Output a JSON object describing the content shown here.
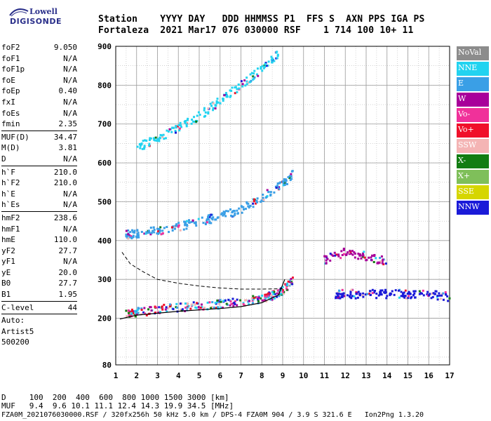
{
  "logo": {
    "top": "Lowell",
    "main": "DIGISONDE"
  },
  "header": {
    "line1": "Station    YYYY DAY   DDD HHMMSS P1  FFS S  AXN PPS IGA PS",
    "line2": "Fortaleza  2021 Mar17 076 030000 RSF    1 714 100 10+ 11"
  },
  "params": [
    {
      "label": "foF2",
      "value": "9.050"
    },
    {
      "label": "foF1",
      "value": "N/A"
    },
    {
      "label": "foF1p",
      "value": "N/A"
    },
    {
      "label": "foE",
      "value": "N/A"
    },
    {
      "label": "foEp",
      "value": "0.40"
    },
    {
      "label": "fxI",
      "value": "N/A"
    },
    {
      "label": "foEs",
      "value": "N/A"
    },
    {
      "label": "fmin",
      "value": "2.35"
    },
    {
      "sep": true
    },
    {
      "label": "MUF(D)",
      "value": "34.47"
    },
    {
      "label": "M(D)",
      "value": "3.81"
    },
    {
      "label": "D",
      "value": "N/A"
    },
    {
      "sep": true
    },
    {
      "label": "h`F",
      "value": "210.0"
    },
    {
      "label": "h`F2",
      "value": "210.0"
    },
    {
      "label": "h`E",
      "value": "N/A"
    },
    {
      "label": "h`Es",
      "value": "N/A"
    },
    {
      "sep": true
    },
    {
      "label": "hmF2",
      "value": "238.6"
    },
    {
      "label": "hmF1",
      "value": "N/A"
    },
    {
      "label": "hmE",
      "value": "110.0"
    },
    {
      "label": "yF2",
      "value": "27.7"
    },
    {
      "label": "yF1",
      "value": "N/A"
    },
    {
      "label": "yE",
      "value": "20.0"
    },
    {
      "label": "B0",
      "value": "27.7"
    },
    {
      "label": "B1",
      "value": "1.95"
    },
    {
      "sep": true
    },
    {
      "label": "C-level",
      "value": "44"
    },
    {
      "sep": true
    },
    {
      "label": "Auto:",
      "value": ""
    },
    {
      "label": "Artist5",
      "value": ""
    },
    {
      "label": "500200",
      "value": ""
    }
  ],
  "legend": [
    {
      "label": "NoVal",
      "color": "#8c8c8c"
    },
    {
      "label": "NNE",
      "color": "#22d3f0"
    },
    {
      "label": "E",
      "color": "#3a9fe6"
    },
    {
      "label": "W",
      "color": "#a8009a"
    },
    {
      "label": "Vo-",
      "color": "#f0319a"
    },
    {
      "label": "Vo+",
      "color": "#f0102a"
    },
    {
      "label": "SSW",
      "color": "#f4b4b4"
    },
    {
      "label": "X-",
      "color": "#127d12"
    },
    {
      "label": "X+",
      "color": "#7fbf5a"
    },
    {
      "label": "SSE",
      "color": "#d6d600"
    },
    {
      "label": "NNW",
      "color": "#1a1ad8"
    }
  ],
  "footer": {
    "line1": "D     100  200  400  600  800 1000 1500 3000 [km]",
    "line2": "MUF   9.4  9.6 10.1 11.1 12.4 14.3 19.9 34.5 [MHz]",
    "line3": "FZA0M_2021076030000.RSF / 320fx256h 50 kHz 5.0 km / DPS-4 FZA0M 904 / 3.9 S 321.6 E   Ion2Png 1.3.20"
  },
  "chart_data": {
    "type": "scatter",
    "xlim": [
      1,
      17
    ],
    "ylim": [
      80,
      900
    ],
    "xticks": [
      1,
      2,
      3,
      4,
      5,
      6,
      7,
      8,
      9,
      10,
      11,
      12,
      13,
      14,
      15,
      16,
      17
    ],
    "yticks": [
      80,
      200,
      300,
      400,
      500,
      600,
      700,
      800,
      900
    ],
    "grid": true,
    "legend_position": "right",
    "traces": [
      {
        "name": "F-trace lower",
        "color_key": "mixed",
        "x": [
          1.5,
          2,
          3,
          4,
          5,
          6,
          7,
          8,
          8.5,
          9,
          9.5
        ],
        "y": [
          210,
          215,
          222,
          228,
          232,
          236,
          242,
          250,
          258,
          270,
          300
        ]
      },
      {
        "name": "second hop",
        "color_key": "E",
        "x": [
          1.5,
          2,
          3,
          4,
          5,
          6,
          7,
          8,
          9,
          9.5
        ],
        "y": [
          415,
          418,
          425,
          435,
          448,
          462,
          480,
          510,
          545,
          570
        ]
      },
      {
        "name": "third hop",
        "color_key": "NNE",
        "x": [
          2,
          3,
          4,
          5,
          6,
          7,
          8,
          8.8
        ],
        "y": [
          640,
          660,
          690,
          720,
          760,
          800,
          840,
          880
        ]
      },
      {
        "name": "oblique NNW",
        "color_key": "NNW",
        "x": [
          11.5,
          12,
          13,
          14,
          15,
          16,
          17
        ],
        "y": [
          262,
          262,
          262,
          262,
          262,
          262,
          255
        ]
      },
      {
        "name": "oblique spread",
        "color_key": "W",
        "x": [
          11,
          12,
          13,
          14
        ],
        "y": [
          350,
          370,
          360,
          345
        ]
      }
    ],
    "profile_curve": {
      "x": [
        1.2,
        2,
        4,
        6,
        7,
        8,
        8.8,
        9.1
      ],
      "y": [
        198,
        208,
        218,
        225,
        230,
        240,
        260,
        300
      ]
    },
    "dashed_curve": {
      "x": [
        1.3,
        1.7,
        2.3,
        3,
        4,
        5,
        6,
        7,
        8,
        9
      ],
      "y": [
        370,
        340,
        320,
        300,
        290,
        283,
        278,
        275,
        275,
        276
      ]
    }
  }
}
